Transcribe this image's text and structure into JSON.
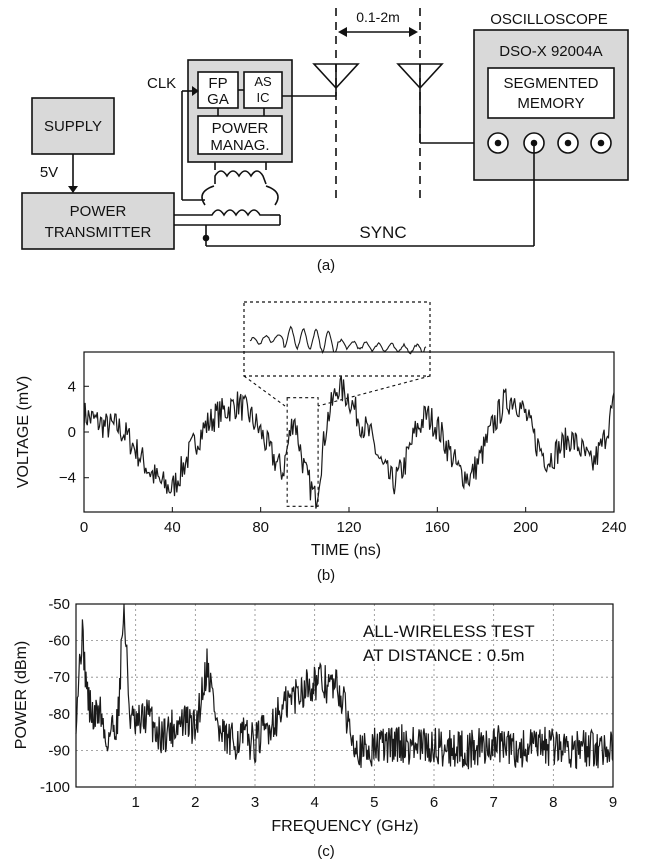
{
  "colors": {
    "block_fill": "#d9d9d9",
    "ink": "#111111",
    "signal": "#1a1a1a"
  },
  "panel_a": {
    "caption": "(a)",
    "supply": "SUPPLY",
    "supply_voltage": "5V",
    "power_tx_line1": "POWER",
    "power_tx_line2": "TRANSMITTER",
    "clk": "CLK",
    "fpga_line1": "FP",
    "fpga_line2": "GA",
    "asic_line1": "AS",
    "asic_line2": "IC",
    "power_manag_line1": "POWER",
    "power_manag_line2": "MANAG.",
    "distance": "0.1-2m",
    "oscilloscope": "OSCILLOSCOPE",
    "scope_model": "DSO-X 92004A",
    "segmented_line1": "SEGMENTED",
    "segmented_line2": "MEMORY",
    "sync": "SYNC"
  },
  "chart_data": [
    {
      "type": "line",
      "caption": "(b)",
      "xlabel": "TIME (ns)",
      "ylabel": "VOLTAGE (mV)",
      "xlim": [
        0,
        240
      ],
      "ylim": [
        -7,
        7
      ],
      "xticks": [
        "0",
        "40",
        "80",
        "120",
        "160",
        "200",
        "240"
      ],
      "yticks": [
        "4",
        "0",
        "−4"
      ],
      "zoom_window_ns": [
        92,
        106
      ],
      "series": [
        {
          "x": [
            0,
            5,
            10,
            15,
            20,
            25,
            30,
            35,
            40,
            45,
            50,
            55,
            60,
            65,
            70,
            75,
            80,
            85,
            90,
            95,
            100,
            105,
            110,
            115,
            120,
            125,
            130,
            135,
            140,
            145,
            150,
            155,
            160,
            165,
            170,
            175,
            180,
            185,
            190,
            195,
            200,
            205,
            210,
            215,
            220,
            225,
            230,
            235,
            240
          ],
          "y": [
            1.5,
            1,
            0.5,
            0.5,
            -0.5,
            -2,
            -3.5,
            -4.5,
            -5,
            -3,
            -1,
            0.5,
            1.5,
            2,
            2.5,
            1.5,
            0,
            -2,
            -3.5,
            1.5,
            -3.5,
            -6,
            1,
            4,
            3,
            1,
            -0.5,
            -3,
            -4.5,
            -3,
            0,
            1.5,
            0.5,
            -1.5,
            -3.5,
            -4,
            -2,
            0.5,
            2.5,
            3,
            1.5,
            -1,
            -2.5,
            -1.5,
            -0.5,
            -1.5,
            -3,
            -1,
            2.5
          ]
        }
      ]
    },
    {
      "type": "line",
      "caption": "(c)",
      "xlabel": "FREQUENCY (GHz)",
      "ylabel": "POWER (dBm)",
      "xlim": [
        0,
        9
      ],
      "ylim": [
        -100,
        -50
      ],
      "grid": true,
      "xticks": [
        "1",
        "2",
        "3",
        "4",
        "5",
        "6",
        "7",
        "8",
        "9"
      ],
      "yticks": [
        "-50",
        "-60",
        "-70",
        "-80",
        "-90",
        "-100"
      ],
      "annotation_line1": "ALL-WIRELESS TEST",
      "annotation_line2": "AT DISTANCE : 0.5m",
      "series": [
        {
          "x": [
            0,
            0.1,
            0.2,
            0.3,
            0.4,
            0.5,
            0.6,
            0.7,
            0.8,
            0.9,
            1.0,
            1.2,
            1.4,
            1.6,
            1.8,
            2.0,
            2.2,
            2.4,
            2.6,
            2.8,
            3.0,
            3.2,
            3.4,
            3.6,
            3.8,
            4.0,
            4.2,
            4.4,
            4.6,
            4.8,
            5.0,
            5.4,
            5.8,
            6.2,
            6.6,
            7.0,
            7.4,
            7.8,
            8.2,
            8.6,
            9.0
          ],
          "y": [
            -80,
            -58,
            -76,
            -82,
            -78,
            -88,
            -84,
            -82,
            -50,
            -80,
            -84,
            -80,
            -86,
            -84,
            -82,
            -84,
            -66,
            -86,
            -88,
            -86,
            -88,
            -84,
            -80,
            -76,
            -73,
            -71,
            -72,
            -73,
            -84,
            -91,
            -89,
            -88,
            -89,
            -89,
            -90,
            -88,
            -90,
            -89,
            -89,
            -90,
            -89
          ]
        }
      ]
    }
  ]
}
